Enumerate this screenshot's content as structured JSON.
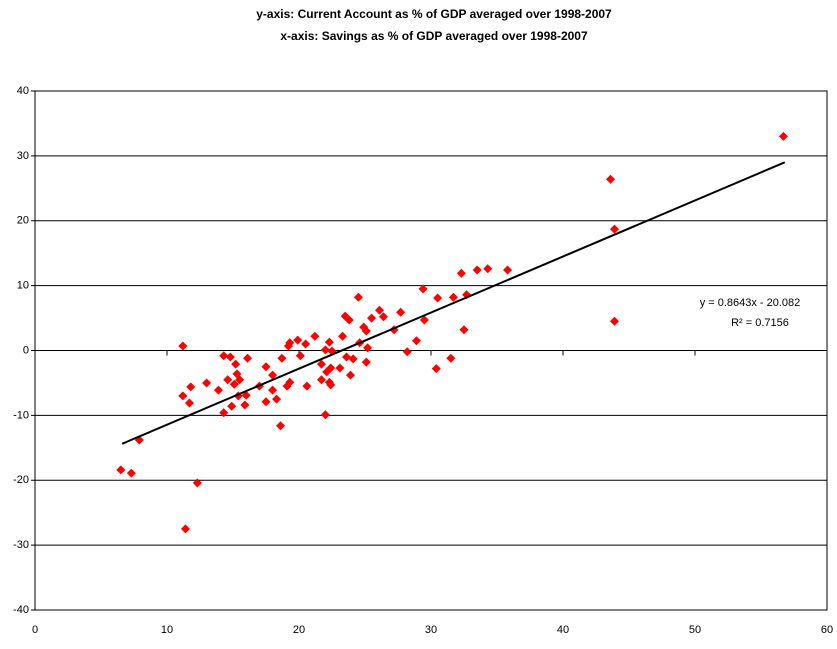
{
  "chart_data": {
    "type": "scatter",
    "title": "y-axis: Current Account as % of GDP averaged over 1998-2007",
    "subtitle": "x-axis: Savings as % of GDP averaged over 1998-2007",
    "x": [
      6.5,
      7.3,
      7.9,
      11.2,
      11.2,
      11.4,
      11.7,
      11.8,
      12.3,
      13.0,
      13.9,
      14.3,
      14.3,
      14.6,
      14.8,
      14.9,
      15.1,
      15.2,
      15.3,
      15.4,
      15.5,
      15.9,
      16.0,
      16.1,
      17.0,
      17.5,
      17.5,
      18.0,
      18.0,
      18.3,
      18.6,
      18.7,
      19.1,
      19.2,
      19.3,
      19.3,
      19.9,
      20.1,
      20.5,
      20.6,
      21.2,
      21.7,
      21.7,
      22.0,
      22.0,
      22.1,
      22.3,
      22.3,
      22.4,
      22.4,
      22.5,
      23.1,
      23.3,
      23.5,
      23.6,
      23.8,
      23.9,
      24.1,
      24.5,
      24.6,
      24.9,
      25.1,
      25.1,
      25.2,
      25.5,
      26.1,
      26.4,
      27.2,
      27.7,
      28.2,
      28.9,
      29.4,
      29.5,
      30.4,
      30.5,
      31.5,
      31.7,
      32.3,
      32.5,
      32.7,
      33.5,
      34.3,
      35.8,
      43.6,
      43.9,
      43.9,
      56.7
    ],
    "values": [
      -18.4,
      -18.9,
      -13.8,
      0.7,
      -7.0,
      -27.5,
      -8.1,
      -5.6,
      -20.4,
      -5.0,
      -6.1,
      -0.8,
      -9.6,
      -4.5,
      -1.0,
      -8.6,
      -5.2,
      -2.1,
      -3.6,
      -7.0,
      -4.5,
      -8.4,
      -6.9,
      -1.2,
      -5.5,
      -2.5,
      -7.9,
      -6.1,
      -3.8,
      -7.5,
      -11.6,
      -1.2,
      -5.5,
      0.7,
      1.2,
      -4.9,
      1.6,
      -0.8,
      1.0,
      -5.5,
      2.2,
      -2.1,
      -4.5,
      0.1,
      -9.9,
      -3.3,
      1.3,
      -4.9,
      -5.3,
      -2.7,
      -0.1,
      -2.7,
      2.2,
      5.3,
      -1.0,
      4.7,
      -3.8,
      -1.3,
      8.2,
      1.2,
      3.6,
      3.0,
      -1.8,
      0.4,
      5.0,
      6.2,
      5.2,
      3.2,
      5.9,
      -0.2,
      1.5,
      9.5,
      4.7,
      -2.8,
      8.1,
      -1.2,
      8.2,
      11.9,
      3.2,
      8.6,
      12.4,
      12.6,
      12.4,
      26.4,
      18.7,
      4.5,
      33.0
    ],
    "color": "#ff0000",
    "xlim": [
      0,
      60
    ],
    "xticks": [
      0,
      10,
      20,
      30,
      40,
      50,
      60
    ],
    "ylim": [
      -40,
      40
    ],
    "yticks": [
      -40,
      -30,
      -20,
      -10,
      0,
      10,
      20,
      30,
      40
    ],
    "grid": true,
    "trendline": {
      "slope": 0.8643,
      "intercept": -20.082,
      "x_range": [
        6.6,
        56.8
      ],
      "label": "y = 0.8643x - 20.082",
      "r2_label": "R² = 0.7156",
      "color": "#000000"
    }
  }
}
